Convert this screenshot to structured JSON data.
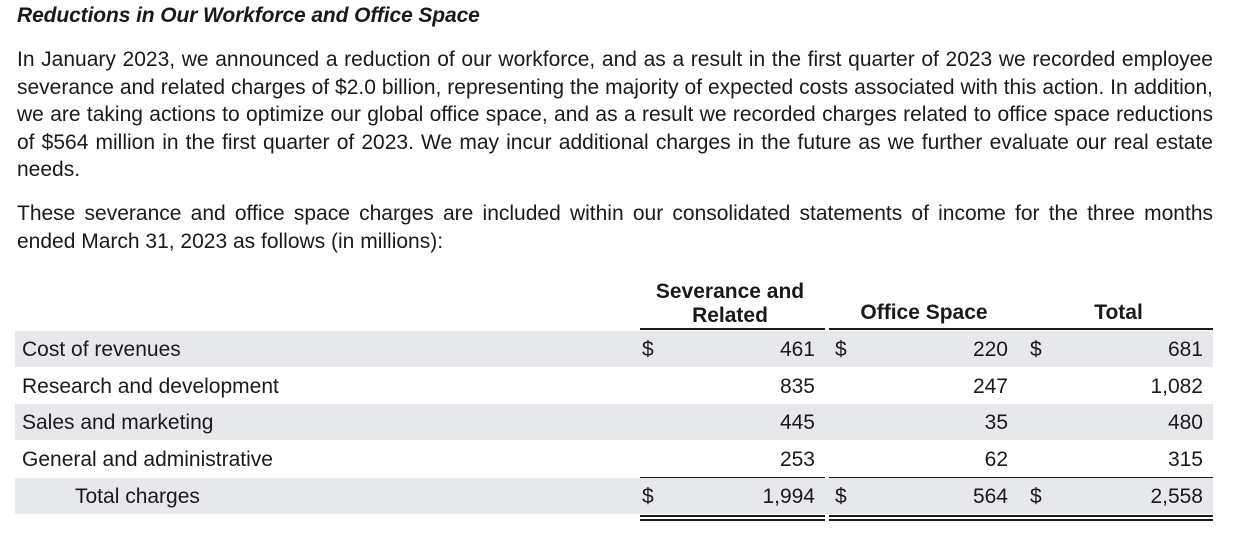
{
  "heading": "Reductions in Our Workforce and Office Space",
  "paragraphs": [
    "In January 2023, we announced a reduction of our workforce, and as a result in the first quarter of 2023 we recorded employee severance and related charges of $2.0 billion, representing the majority of expected costs associated with this action. In addition, we are taking actions to optimize our global office space, and as a result we recorded charges related to office space reductions of $564 million in the first quarter of 2023. We may incur additional charges in the future as we further evaluate our real estate needs.",
    "These severance and office space charges are included within our consolidated statements of income for the three months ended March 31, 2023 as follows (in millions):"
  ],
  "table": {
    "columns": [
      "Severance and Related",
      "Office Space",
      "Total"
    ],
    "currency_symbol": "$",
    "rows": [
      {
        "label": "Cost of revenues",
        "severance": "461",
        "office": "220",
        "total": "681"
      },
      {
        "label": "Research and development",
        "severance": "835",
        "office": "247",
        "total": "1,082"
      },
      {
        "label": "Sales and marketing",
        "severance": "445",
        "office": "35",
        "total": "480"
      },
      {
        "label": "General and administrative",
        "severance": "253",
        "office": "62",
        "total": "315"
      }
    ],
    "total_row": {
      "label": "Total charges",
      "severance": "1,994",
      "office": "564",
      "total": "2,558"
    }
  }
}
